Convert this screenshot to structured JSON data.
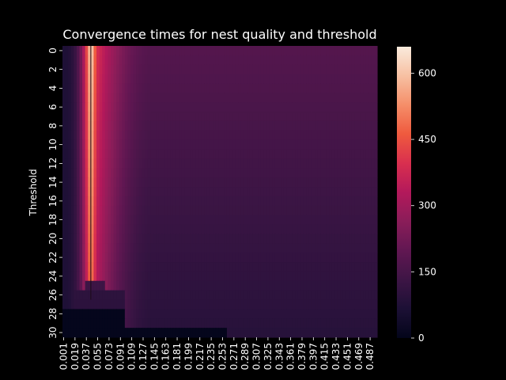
{
  "chart_data": {
    "type": "heatmap",
    "title": "Convergence times for nest quality and threshold",
    "xlabel": "",
    "ylabel": "Threshold",
    "x_tick_labels": [
      "0.001",
      "0.019",
      "0.037",
      "0.055",
      "0.073",
      "0.091",
      "0.109",
      "0.127",
      "0.145",
      "0.163",
      "0.181",
      "0.199",
      "0.217",
      "0.235",
      "0.253",
      "0.271",
      "0.289",
      "0.307",
      "0.325",
      "0.343",
      "0.361",
      "0.379",
      "0.397",
      "0.415",
      "0.433",
      "0.451",
      "0.469",
      "0.487"
    ],
    "y_tick_labels": [
      "0",
      "2",
      "4",
      "6",
      "8",
      "10",
      "12",
      "14",
      "16",
      "18",
      "20",
      "22",
      "24",
      "26",
      "28",
      "30"
    ],
    "x_range": [
      0.001,
      0.5
    ],
    "x_step": 0.0045,
    "y_range": [
      0,
      31
    ],
    "colorbar": {
      "ticks": [
        "0",
        "150",
        "300",
        "450",
        "600"
      ],
      "range": [
        0,
        660
      ],
      "colormap": "rocket"
    },
    "value_trends": {
      "peak_ridge": {
        "x": 0.046,
        "value": 660,
        "thresholds": [
          0,
          25
        ]
      },
      "shoulder_x": 0.055,
      "shoulder_value": 400,
      "far_value_at_threshold_0": 175,
      "far_value_at_threshold_30": 90,
      "near_zero_region_1": {
        "x": [
          0.003,
          0.1
        ],
        "thresholds": [
          28,
          31
        ],
        "value": 5
      },
      "near_zero_region_2": {
        "x": [
          0.1,
          0.26
        ],
        "thresholds": [
          30,
          31
        ],
        "value": 5
      },
      "near_zero_region_3": {
        "x": [
          0.001,
          0.003
        ],
        "thresholds": [
          29,
          31
        ],
        "value": 20
      }
    },
    "colors": {
      "background": "#000000",
      "text": "#ffffff"
    }
  }
}
